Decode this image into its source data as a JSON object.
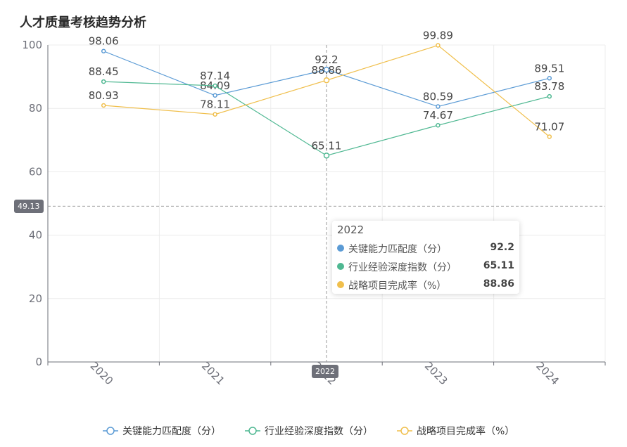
{
  "chart_data": {
    "type": "line",
    "title": "人才质量考核趋势分析",
    "categories": [
      "2020",
      "2021",
      "2022",
      "2023",
      "2024"
    ],
    "ylim": [
      0,
      100
    ],
    "yticks": [
      0,
      20,
      40,
      60,
      80,
      100
    ],
    "grid": true,
    "legend_position": "bottom",
    "series": [
      {
        "name": "关键能力匹配度（分）",
        "color": "#5b9bd5",
        "values": [
          98.06,
          84.09,
          92.2,
          80.59,
          89.51
        ]
      },
      {
        "name": "行业经验深度指数（分）",
        "color": "#4fb892",
        "values": [
          88.45,
          87.14,
          65.11,
          74.67,
          83.78
        ]
      },
      {
        "name": "战略项目完成率（%）",
        "color": "#f0bf4c",
        "values": [
          80.93,
          78.11,
          88.86,
          99.89,
          71.07
        ]
      }
    ],
    "axis_pointer": {
      "x_label": "2022",
      "y_label": "49.13"
    },
    "tooltip": {
      "header": "2022",
      "rows": [
        {
          "name": "关键能力匹配度（分）",
          "value": "92.2",
          "color": "#5b9bd5"
        },
        {
          "name": "行业经验深度指数（分）",
          "value": "65.11",
          "color": "#4fb892"
        },
        {
          "name": "战略项目完成率（%）",
          "value": "88.86",
          "color": "#f0bf4c"
        }
      ]
    }
  }
}
